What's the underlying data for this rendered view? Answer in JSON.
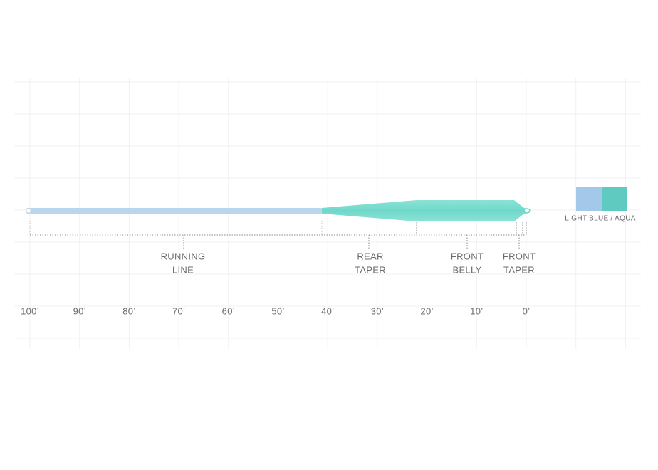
{
  "sections": [
    {
      "lines": [
        "RUNNING",
        "LINE"
      ]
    },
    {
      "lines": [
        "REAR",
        "TAPER"
      ]
    },
    {
      "lines": [
        "FRONT",
        "BELLY"
      ]
    },
    {
      "lines": [
        "FRONT",
        "TAPER"
      ]
    }
  ],
  "distance_labels": [
    "100’",
    "90’",
    "80’",
    "70’",
    "60’",
    "50’",
    "40’",
    "30’",
    "20’",
    "10’",
    "0’"
  ],
  "swatch_label": "LIGHT BLUE / AQUA"
}
